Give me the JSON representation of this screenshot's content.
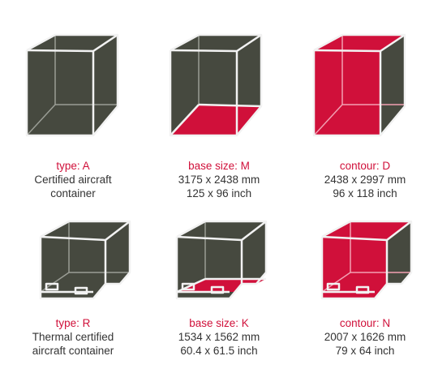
{
  "colors": {
    "dark": "#46493f",
    "accent": "#d0103a",
    "frame": "#f2f2f2",
    "text": "#333333"
  },
  "rows": [
    {
      "cells": [
        {
          "id": "type-a",
          "highlight": "none",
          "heading": "type: A",
          "lines": [
            "Certified aircraft",
            "container"
          ]
        },
        {
          "id": "base-m",
          "highlight": "floor",
          "heading": "base size: M",
          "lines": [
            "3175 x 2438 mm",
            "125 x 96 inch"
          ]
        },
        {
          "id": "contour-d",
          "highlight": "front",
          "heading": "contour: D",
          "lines": [
            "2438 x 2997 mm",
            "96 x 118 inch"
          ]
        }
      ]
    },
    {
      "cells": [
        {
          "id": "type-r",
          "highlight": "none",
          "heading": "type: R",
          "lines": [
            "Thermal certified",
            "aircraft container"
          ]
        },
        {
          "id": "base-k",
          "highlight": "floor",
          "heading": "base size: K",
          "lines": [
            "1534 x 1562 mm",
            "60.4 x 61.5 inch"
          ]
        },
        {
          "id": "contour-n",
          "highlight": "front",
          "heading": "contour: N",
          "lines": [
            "2007 x 1626 mm",
            "79 x 64 inch"
          ]
        }
      ]
    }
  ]
}
